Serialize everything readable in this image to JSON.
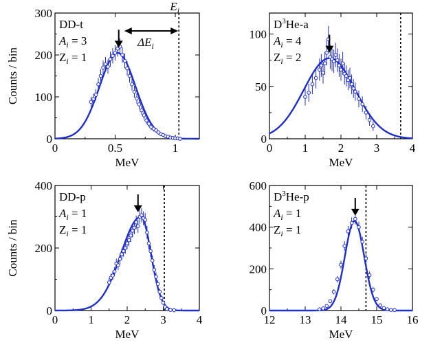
{
  "chart_data": [
    {
      "type": "scatter",
      "panel": "DD-t",
      "annotations": {
        "reaction": "DD-t",
        "A_sym": "A",
        "A_sub": "i",
        "A_val": " = 3",
        "Z_sym": "Z",
        "Z_sub": "i",
        "Z_val": " = 1",
        "delta_label": "ΔE",
        "delta_sub": "i",
        "ei_label": "E",
        "ei_sub": "i"
      },
      "xlabel": "MeV",
      "ylabel": "Counts / bin",
      "xlim": [
        0,
        1.2
      ],
      "ylim": [
        0,
        300
      ],
      "xticks": [
        0,
        0.5,
        1
      ],
      "xtick_labels": [
        "0",
        "0.5",
        "1"
      ],
      "yticks": [
        0,
        100,
        200,
        300
      ],
      "ytick_labels": [
        "0",
        "100",
        "200",
        "300"
      ],
      "peak_arrow_x": 0.53,
      "birth_energy_x": 1.03,
      "fit": {
        "type": "gaussian",
        "amplitude": 205,
        "mean": 0.52,
        "sigma": 0.15
      },
      "data_x": [
        0.3,
        0.32,
        0.34,
        0.36,
        0.38,
        0.4,
        0.42,
        0.44,
        0.46,
        0.48,
        0.5,
        0.52,
        0.54,
        0.56,
        0.58,
        0.6,
        0.62,
        0.64,
        0.66,
        0.68,
        0.7,
        0.72,
        0.74,
        0.76,
        0.78,
        0.8,
        0.82,
        0.84,
        0.86,
        0.88,
        0.9,
        0.92,
        0.94,
        0.96,
        0.98,
        1.0,
        1.02,
        1.04
      ],
      "data_y": [
        88,
        95,
        105,
        130,
        150,
        170,
        178,
        172,
        190,
        198,
        205,
        215,
        220,
        200,
        186,
        168,
        150,
        130,
        112,
        96,
        82,
        68,
        56,
        44,
        36,
        28,
        24,
        20,
        15,
        11,
        9,
        6,
        5,
        3,
        2,
        1,
        1,
        0
      ],
      "color": "#1f2ec9"
    },
    {
      "type": "scatter",
      "panel": "D3He-a",
      "annotations": {
        "reaction_pre": "D",
        "reaction_sup": "3",
        "reaction_post": "He-a",
        "A_sym": "A",
        "A_sub": "i",
        "A_val": " = 4",
        "Z_sym": "Z",
        "Z_sub": "i",
        "Z_val": " = 2"
      },
      "xlabel": "MeV",
      "ylabel": "",
      "xlim": [
        0,
        4
      ],
      "ylim": [
        0,
        120
      ],
      "xticks": [
        0,
        1,
        2,
        3,
        4
      ],
      "xtick_labels": [
        "0",
        "1",
        "2",
        "3",
        "4"
      ],
      "yticks": [
        0,
        50,
        100
      ],
      "ytick_labels": [
        "0",
        "50",
        "100"
      ],
      "peak_arrow_x": 1.68,
      "birth_energy_x": 3.67,
      "fit": {
        "type": "gaussian",
        "amplitude": 77,
        "mean": 1.68,
        "sigma": 0.72
      },
      "data_x": [
        1.0,
        1.1,
        1.2,
        1.3,
        1.4,
        1.45,
        1.5,
        1.55,
        1.6,
        1.65,
        1.7,
        1.75,
        1.8,
        1.85,
        1.9,
        1.95,
        2.0,
        2.05,
        2.1,
        2.15,
        2.2,
        2.25,
        2.3,
        2.35,
        2.4,
        2.5,
        2.6,
        2.7,
        2.8,
        2.9
      ],
      "data_y": [
        40,
        44,
        52,
        58,
        66,
        70,
        63,
        72,
        82,
        95,
        78,
        76,
        74,
        80,
        75,
        70,
        66,
        72,
        62,
        60,
        56,
        58,
        52,
        48,
        45,
        38,
        33,
        25,
        18,
        12
      ],
      "color": "#1f2ec9"
    },
    {
      "type": "scatter",
      "panel": "DD-p",
      "annotations": {
        "reaction": "DD-p",
        "A_sym": "A",
        "A_sub": "i",
        "A_val": " = 1",
        "Z_sym": "Z",
        "Z_sub": "i",
        "Z_val": " = 1"
      },
      "xlabel": "MeV",
      "ylabel": "Counts / bin",
      "xlim": [
        0,
        4
      ],
      "ylim": [
        0,
        400
      ],
      "xticks": [
        0,
        1,
        2,
        3,
        4
      ],
      "xtick_labels": [
        "0",
        "1",
        "2",
        "3",
        "4"
      ],
      "yticks": [
        0,
        200,
        400
      ],
      "ytick_labels": [
        "0",
        "200",
        "400"
      ],
      "peak_arrow_x": 2.3,
      "birth_energy_x": 3.03,
      "fit": {
        "type": "skewed",
        "amplitude": 300,
        "mean": 2.38,
        "sigma_left": 0.55,
        "sigma_right": 0.28
      },
      "data_x": [
        1.5,
        1.55,
        1.6,
        1.65,
        1.7,
        1.75,
        1.8,
        1.85,
        1.9,
        1.95,
        2.0,
        2.05,
        2.1,
        2.15,
        2.2,
        2.25,
        2.3,
        2.35,
        2.4,
        2.45,
        2.5,
        2.55,
        2.6,
        2.65,
        2.7,
        2.75,
        2.8,
        2.85,
        2.9,
        2.95,
        3.0,
        3.05,
        3.1,
        3.2,
        3.3
      ],
      "data_y": [
        90,
        105,
        112,
        125,
        150,
        145,
        165,
        180,
        190,
        200,
        215,
        225,
        240,
        255,
        265,
        282,
        270,
        300,
        305,
        295,
        290,
        250,
        215,
        190,
        160,
        130,
        108,
        85,
        60,
        40,
        25,
        12,
        5,
        2,
        1
      ],
      "color": "#1f2ec9"
    },
    {
      "type": "scatter",
      "panel": "D3He-p",
      "annotations": {
        "reaction_pre": "D",
        "reaction_sup": "3",
        "reaction_post": "He-p",
        "A_sym": "A",
        "A_sub": "i",
        "A_val": " = 1",
        "Z_sym": "Z",
        "Z_sub": "i",
        "Z_val": " = 1"
      },
      "xlabel": "MeV",
      "ylabel": "",
      "xlim": [
        12,
        16
      ],
      "ylim": [
        0,
        600
      ],
      "xticks": [
        12,
        13,
        14,
        15,
        16
      ],
      "xtick_labels": [
        "12",
        "13",
        "14",
        "15",
        "16"
      ],
      "yticks": [
        0,
        200,
        400,
        600
      ],
      "ytick_labels": [
        "0",
        "200",
        "400",
        "600"
      ],
      "peak_arrow_x": 14.4,
      "birth_energy_x": 14.7,
      "fit": {
        "type": "gaussian",
        "amplitude": 430,
        "mean": 14.38,
        "sigma": 0.27
      },
      "data_x": [
        13.4,
        13.5,
        13.6,
        13.7,
        13.8,
        13.9,
        14.0,
        14.1,
        14.2,
        14.3,
        14.4,
        14.5,
        14.6,
        14.7,
        14.8,
        14.9,
        15.0,
        15.1,
        15.2,
        15.3,
        15.4,
        15.5
      ],
      "data_y": [
        6,
        10,
        22,
        45,
        90,
        150,
        220,
        310,
        380,
        420,
        440,
        400,
        330,
        250,
        170,
        100,
        55,
        25,
        12,
        6,
        3,
        2
      ],
      "color": "#1f2ec9"
    }
  ]
}
